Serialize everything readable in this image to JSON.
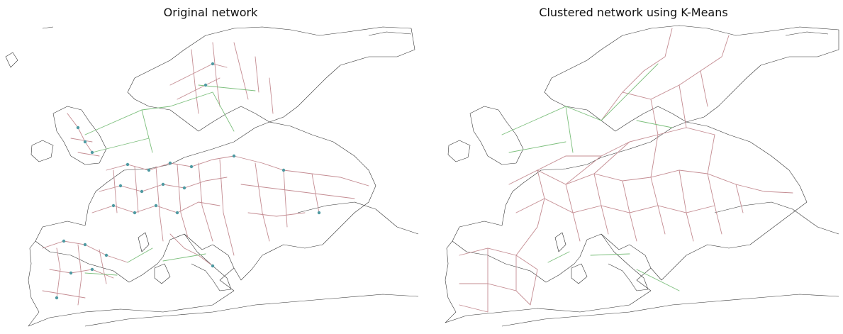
{
  "panels": [
    {
      "title": "Original network"
    },
    {
      "title": "Clustered network using K-Means"
    }
  ],
  "legend_colors": {
    "ac_line": "#c48c92",
    "dc_link": "#7cbf7c",
    "bus": "#4f9aa2",
    "coastline": "#333333"
  }
}
